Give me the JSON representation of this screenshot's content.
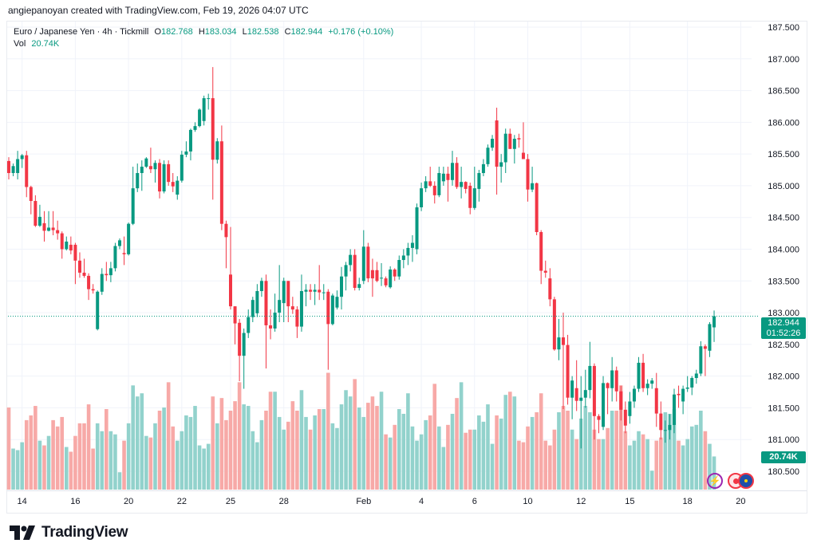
{
  "credit": "angiepanoyan created with TradingView.com, Feb 19, 2026 04:07 UTC",
  "legend": {
    "symbol": "Euro / Japanese Yen · 4h · Tickmill",
    "o_label": "O",
    "open": "182.768",
    "h_label": "H",
    "high": "183.034",
    "l_label": "L",
    "low": "182.538",
    "c_label": "C",
    "close": "182.944",
    "change": "+0.176 (+0.10%)",
    "vol_label": "Vol",
    "vol": "20.74K"
  },
  "last_price": {
    "price": "182.944",
    "countdown": "01:52:26"
  },
  "volume_tag": "20.74K",
  "colors": {
    "up": "#089981",
    "down": "#f23645",
    "vol_up": "#92d2cc",
    "vol_down": "#f7a9a7",
    "grid": "#f0f3fa"
  },
  "icons": [
    "lightning-alert-icon",
    "record-icon",
    "eu-flag-icon"
  ],
  "footer": {
    "brand": "TradingView"
  },
  "chart_data": {
    "type": "candlestick",
    "title": "Euro / Japanese Yen · 4h · Tickmill",
    "ylim": [
      180.5,
      187.5
    ],
    "price_ticks": [
      "187.500",
      "187.000",
      "186.500",
      "186.000",
      "185.500",
      "185.000",
      "184.500",
      "184.000",
      "183.500",
      "183.000",
      "182.500",
      "182.000",
      "181.500",
      "181.000",
      "180.500"
    ],
    "time_ticks": [
      {
        "label": "14",
        "bar": 3
      },
      {
        "label": "16",
        "bar": 15
      },
      {
        "label": "20",
        "bar": 27
      },
      {
        "label": "22",
        "bar": 39
      },
      {
        "label": "25",
        "bar": 50
      },
      {
        "label": "28",
        "bar": 62
      },
      {
        "label": "Feb",
        "bar": 80
      },
      {
        "label": "4",
        "bar": 93
      },
      {
        "label": "6",
        "bar": 105
      },
      {
        "label": "10",
        "bar": 117
      },
      {
        "label": "12",
        "bar": 129
      },
      {
        "label": "15",
        "bar": 140
      },
      {
        "label": "18",
        "bar": 153
      },
      {
        "label": "20",
        "bar": 165
      }
    ],
    "ohlc": [
      [
        185.39,
        185.45,
        185.1,
        185.2
      ],
      [
        185.2,
        185.35,
        185.15,
        185.31
      ],
      [
        185.2,
        185.55,
        185.1,
        185.42
      ],
      [
        185.42,
        185.5,
        185.28,
        185.48
      ],
      [
        185.48,
        185.55,
        184.82,
        184.98
      ],
      [
        184.98,
        185.0,
        184.55,
        184.76
      ],
      [
        184.76,
        184.85,
        184.35,
        184.37
      ],
      [
        184.37,
        184.7,
        184.35,
        184.51
      ],
      [
        184.41,
        184.6,
        184.12,
        184.29
      ],
      [
        184.29,
        184.6,
        184.28,
        184.34
      ],
      [
        184.34,
        184.6,
        184.22,
        184.3
      ],
      [
        184.3,
        184.45,
        184.15,
        184.25
      ],
      [
        184.25,
        184.28,
        183.85,
        184.0
      ],
      [
        184.0,
        184.2,
        183.98,
        184.12
      ],
      [
        184.07,
        184.2,
        183.92,
        183.98
      ],
      [
        184.07,
        184.1,
        183.45,
        183.82
      ],
      [
        183.82,
        183.95,
        183.55,
        183.63
      ],
      [
        183.63,
        183.85,
        183.55,
        183.58
      ],
      [
        183.58,
        183.62,
        183.2,
        183.37
      ],
      [
        183.37,
        183.45,
        183.3,
        183.35
      ],
      [
        182.74,
        183.35,
        182.72,
        183.33
      ],
      [
        183.33,
        183.7,
        183.28,
        183.61
      ],
      [
        183.61,
        183.8,
        183.5,
        183.59
      ],
      [
        183.59,
        183.8,
        183.48,
        183.7
      ],
      [
        183.7,
        184.1,
        183.65,
        184.05
      ],
      [
        184.05,
        184.17,
        184.0,
        184.14
      ],
      [
        183.94,
        184.2,
        183.75,
        183.92
      ],
      [
        183.92,
        184.42,
        183.9,
        184.4
      ],
      [
        184.4,
        185.3,
        184.38,
        184.96
      ],
      [
        184.96,
        185.35,
        184.9,
        185.2
      ],
      [
        185.2,
        185.4,
        184.92,
        185.3
      ],
      [
        185.3,
        185.45,
        185.28,
        185.43
      ],
      [
        185.31,
        185.6,
        185.2,
        185.26
      ],
      [
        185.26,
        185.4,
        185.05,
        185.36
      ],
      [
        185.36,
        185.42,
        184.8,
        184.91
      ],
      [
        184.91,
        185.4,
        184.88,
        185.34
      ],
      [
        185.34,
        185.4,
        185.0,
        185.06
      ],
      [
        185.06,
        185.2,
        184.9,
        184.99
      ],
      [
        184.86,
        185.15,
        184.78,
        185.08
      ],
      [
        185.08,
        185.55,
        185.05,
        185.49
      ],
      [
        185.49,
        185.7,
        185.45,
        185.54
      ],
      [
        185.54,
        185.9,
        185.4,
        185.88
      ],
      [
        185.88,
        186.0,
        185.85,
        185.94
      ],
      [
        185.94,
        186.22,
        185.92,
        186.2
      ],
      [
        186.02,
        186.42,
        185.95,
        186.38
      ],
      [
        186.38,
        186.45,
        186.2,
        186.38
      ],
      [
        186.38,
        186.87,
        184.78,
        185.41
      ],
      [
        185.41,
        185.75,
        185.35,
        185.7
      ],
      [
        185.7,
        185.95,
        184.3,
        184.4
      ],
      [
        184.4,
        184.45,
        183.7,
        184.19
      ],
      [
        183.6,
        184.35,
        183.05,
        183.1
      ],
      [
        183.1,
        183.1,
        182.5,
        182.83
      ],
      [
        182.84,
        182.9,
        181.92,
        182.32
      ],
      [
        182.32,
        182.75,
        181.8,
        182.68
      ],
      [
        182.68,
        183.05,
        182.6,
        182.93
      ],
      [
        182.93,
        183.25,
        182.85,
        183.2
      ],
      [
        182.99,
        183.45,
        182.93,
        183.34
      ],
      [
        183.34,
        183.55,
        183.25,
        183.5
      ],
      [
        183.5,
        183.6,
        182.12,
        182.8
      ],
      [
        182.8,
        183.05,
        182.58,
        182.75
      ],
      [
        182.75,
        183.3,
        182.7,
        183.0
      ],
      [
        183.0,
        183.75,
        182.85,
        183.2
      ],
      [
        183.15,
        183.55,
        182.85,
        183.5
      ],
      [
        183.5,
        183.5,
        182.85,
        183.1
      ],
      [
        183.1,
        183.25,
        182.98,
        183.05
      ],
      [
        183.05,
        183.1,
        182.6,
        182.78
      ],
      [
        182.78,
        183.6,
        182.7,
        183.34
      ],
      [
        183.33,
        183.45,
        183.1,
        183.36
      ],
      [
        183.36,
        183.45,
        183.2,
        183.33
      ],
      [
        183.33,
        183.45,
        183.12,
        183.36
      ],
      [
        183.36,
        183.75,
        183.2,
        183.32
      ],
      [
        183.32,
        183.45,
        183.2,
        183.32
      ],
      [
        183.33,
        183.37,
        182.1,
        182.82
      ],
      [
        182.82,
        183.3,
        182.8,
        183.27
      ],
      [
        183.08,
        183.35,
        183.05,
        183.25
      ],
      [
        183.25,
        183.72,
        183.05,
        183.57
      ],
      [
        183.57,
        183.8,
        183.35,
        183.75
      ],
      [
        183.75,
        184.0,
        183.65,
        183.91
      ],
      [
        183.91,
        184.0,
        183.35,
        183.39
      ],
      [
        183.39,
        183.55,
        183.35,
        183.45
      ],
      [
        183.5,
        184.3,
        183.45,
        184.04
      ],
      [
        184.04,
        184.1,
        183.48,
        183.54
      ],
      [
        183.67,
        183.85,
        183.25,
        183.54
      ],
      [
        183.67,
        183.8,
        183.48,
        183.5
      ],
      [
        183.55,
        183.78,
        183.42,
        183.55
      ],
      [
        183.54,
        183.57,
        183.4,
        183.43
      ],
      [
        183.4,
        183.73,
        183.38,
        183.68
      ],
      [
        183.68,
        183.7,
        183.5,
        183.57
      ],
      [
        183.57,
        183.9,
        183.52,
        183.83
      ],
      [
        183.83,
        184.0,
        183.7,
        183.9
      ],
      [
        183.9,
        184.1,
        183.75,
        184.02
      ],
      [
        184.02,
        184.22,
        183.8,
        184.1
      ],
      [
        184.0,
        184.72,
        183.92,
        184.66
      ],
      [
        184.66,
        185.05,
        184.6,
        184.96
      ],
      [
        184.96,
        185.15,
        184.9,
        185.07
      ],
      [
        185.07,
        185.3,
        184.98,
        185.0
      ],
      [
        185.0,
        185.07,
        184.72,
        184.85
      ],
      [
        184.85,
        185.3,
        184.82,
        185.2
      ],
      [
        185.07,
        185.3,
        185.0,
        185.19
      ],
      [
        185.19,
        185.3,
        184.75,
        185.09
      ],
      [
        185.09,
        185.55,
        185.0,
        185.36
      ],
      [
        185.36,
        185.45,
        184.95,
        184.98
      ],
      [
        184.98,
        185.3,
        184.8,
        185.06
      ],
      [
        185.06,
        185.07,
        184.88,
        184.95
      ],
      [
        185.0,
        185.05,
        184.55,
        184.65
      ],
      [
        184.65,
        185.3,
        184.62,
        184.96
      ],
      [
        184.95,
        185.25,
        184.75,
        185.2
      ],
      [
        185.2,
        185.42,
        185.15,
        185.34
      ],
      [
        185.34,
        185.65,
        185.3,
        185.6
      ],
      [
        185.6,
        185.8,
        185.55,
        185.74
      ],
      [
        186.03,
        186.23,
        184.86,
        185.3
      ],
      [
        185.3,
        185.5,
        185.05,
        185.37
      ],
      [
        185.37,
        185.9,
        185.2,
        185.82
      ],
      [
        185.82,
        185.9,
        185.58,
        185.58
      ],
      [
        185.58,
        185.8,
        185.35,
        185.74
      ],
      [
        185.75,
        185.82,
        185.6,
        185.73
      ],
      [
        185.52,
        186.0,
        185.42,
        185.42
      ],
      [
        185.42,
        185.5,
        184.75,
        184.94
      ],
      [
        184.94,
        185.3,
        184.9,
        185.04
      ],
      [
        185.04,
        185.05,
        184.22,
        184.27
      ],
      [
        184.27,
        184.3,
        183.45,
        183.66
      ],
      [
        183.66,
        183.82,
        183.55,
        183.63
      ],
      [
        183.54,
        183.7,
        183.1,
        183.21
      ],
      [
        183.21,
        183.25,
        182.4,
        182.42
      ],
      [
        182.42,
        182.9,
        182.25,
        182.61
      ],
      [
        182.61,
        183.0,
        181.48,
        182.49
      ],
      [
        182.49,
        182.65,
        181.55,
        181.66
      ],
      [
        181.66,
        182.0,
        181.32,
        181.93
      ],
      [
        181.81,
        182.25,
        181.45,
        181.61
      ],
      [
        181.61,
        182.0,
        180.86,
        181.66
      ],
      [
        181.66,
        182.1,
        181.5,
        181.78
      ],
      [
        181.78,
        182.54,
        181.65,
        182.16
      ],
      [
        182.16,
        182.2,
        181.0,
        181.37
      ],
      [
        181.37,
        181.4,
        181.1,
        181.31
      ],
      [
        181.2,
        182.0,
        181.15,
        181.89
      ],
      [
        181.89,
        181.9,
        181.4,
        181.81
      ],
      [
        181.81,
        182.3,
        181.6,
        182.09
      ],
      [
        182.09,
        182.15,
        181.6,
        181.76
      ],
      [
        181.76,
        181.85,
        181.3,
        181.47
      ],
      [
        181.47,
        181.6,
        181.1,
        181.22
      ],
      [
        181.37,
        181.75,
        181.25,
        181.6
      ],
      [
        181.6,
        181.85,
        181.5,
        181.8
      ],
      [
        181.8,
        182.3,
        181.75,
        182.21
      ],
      [
        182.21,
        182.35,
        181.75,
        181.81
      ],
      [
        181.81,
        181.95,
        181.7,
        181.88
      ],
      [
        181.88,
        181.97,
        181.8,
        181.93
      ],
      [
        181.81,
        182.05,
        181.2,
        181.41
      ],
      [
        181.41,
        181.6,
        181.0,
        181.15
      ],
      [
        181.15,
        181.3,
        180.95,
        181.15
      ],
      [
        181.15,
        181.4,
        181.0,
        181.23
      ],
      [
        181.23,
        181.8,
        181.1,
        181.71
      ],
      [
        181.72,
        181.85,
        181.5,
        181.7
      ],
      [
        181.6,
        181.85,
        181.4,
        181.8
      ],
      [
        181.8,
        182.0,
        181.75,
        181.82
      ],
      [
        181.82,
        182.0,
        181.7,
        181.97
      ],
      [
        181.97,
        182.1,
        181.88,
        182.04
      ],
      [
        182.04,
        182.55,
        182.0,
        182.47
      ],
      [
        182.47,
        182.5,
        182.0,
        182.43
      ],
      [
        182.4,
        182.85,
        182.3,
        182.82
      ],
      [
        182.768,
        183.034,
        182.538,
        182.944
      ]
    ],
    "volume_k": [
      52,
      26,
      25,
      30,
      44,
      47,
      53,
      31,
      28,
      34,
      44,
      40,
      46,
      27,
      24,
      34,
      42,
      42,
      54,
      26,
      42,
      37,
      51,
      37,
      35,
      11,
      31,
      42,
      66,
      59,
      61,
      34,
      33,
      42,
      50,
      52,
      68,
      40,
      31,
      37,
      47,
      46,
      53,
      28,
      26,
      29,
      59,
      42,
      58,
      44,
      50,
      56,
      68,
      54,
      53,
      37,
      30,
      44,
      50,
      62,
      62,
      46,
      38,
      43,
      56,
      50,
      63,
      46,
      38,
      47,
      51,
      51,
      74,
      42,
      39,
      54,
      63,
      59,
      70,
      52,
      46,
      55,
      59,
      53,
      62,
      35,
      33,
      41,
      51,
      48,
      61,
      40,
      31,
      35,
      44,
      47,
      67,
      40,
      27,
      41,
      48,
      58,
      68,
      36,
      38,
      38,
      47,
      43,
      54,
      29,
      47,
      45,
      60,
      62,
      59,
      31,
      30,
      40,
      46,
      49,
      61,
      31,
      28,
      38,
      49,
      53,
      50,
      38,
      32,
      45,
      53,
      49,
      38,
      32,
      32,
      39,
      50,
      50,
      66,
      37,
      28,
      31,
      37,
      35,
      32,
      12,
      31,
      33,
      49,
      48,
      51,
      31,
      28,
      32,
      40,
      41,
      50,
      37,
      29,
      21
    ]
  }
}
